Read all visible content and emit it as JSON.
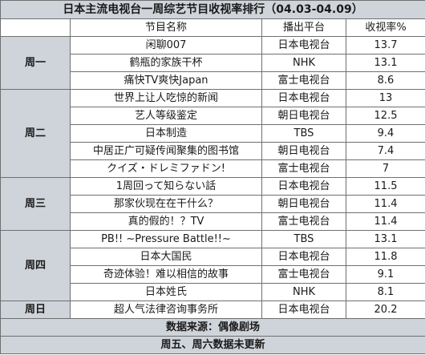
{
  "title": "日本主流电视台一周综艺节目收视率排行（04.03-04.09）",
  "columns": {
    "program": "节目名称",
    "network": "播出平台",
    "rating": "收视率%"
  },
  "groups": [
    {
      "day": "周一",
      "rows": [
        {
          "program": "闲聊007",
          "network": "日本电视台",
          "rating": "13.7"
        },
        {
          "program": "鹤瓶的家族干杯",
          "network": "NHK",
          "rating": "13.1"
        },
        {
          "program": "痛快TV爽快Japan",
          "network": "富士电视台",
          "rating": "8.6"
        }
      ]
    },
    {
      "day": "周二",
      "rows": [
        {
          "program": "世界上让人吃惊的新闻",
          "network": "日本电视台",
          "rating": "13"
        },
        {
          "program": "艺人等级鉴定",
          "network": "朝日电视台",
          "rating": "12.5"
        },
        {
          "program": "日本制造",
          "network": "TBS",
          "rating": "9.4"
        },
        {
          "program": "中居正广可疑传闻聚集的图书馆",
          "network": "朝日电视台",
          "rating": "7.4"
        },
        {
          "program": "クイズ・ドレミファドン!",
          "network": "富士电视台",
          "rating": "7"
        }
      ]
    },
    {
      "day": "周三",
      "rows": [
        {
          "program": "1周回って知らない話",
          "network": "日本电视台",
          "rating": "11.5"
        },
        {
          "program": "那家伙现在在干什么？",
          "network": "朝日电视台",
          "rating": "11.4"
        },
        {
          "program": "真的假的！？TV",
          "network": "富士电视台",
          "rating": "11.4"
        }
      ]
    },
    {
      "day": "周四",
      "rows": [
        {
          "program": "PB!! ~Pressure Battle!!~",
          "network": "TBS",
          "rating": "13.1"
        },
        {
          "program": "日本大国民",
          "network": "日本电视台",
          "rating": "11.8"
        },
        {
          "program": "奇迹体验！难以相信的故事",
          "network": "富士电视台",
          "rating": "9.1"
        },
        {
          "program": "日本姓氏",
          "network": "NHK",
          "rating": "8.1"
        }
      ]
    },
    {
      "day": "周日",
      "rows": [
        {
          "program": "超人气法律咨询事务所",
          "network": "日本电视台",
          "rating": "20.2"
        }
      ]
    }
  ],
  "footer": {
    "source": "数据来源：偶像剧场",
    "note": "周五、周六数据未更新"
  },
  "colors": {
    "band": "#cfd4da",
    "border": "#6f6f6f"
  }
}
